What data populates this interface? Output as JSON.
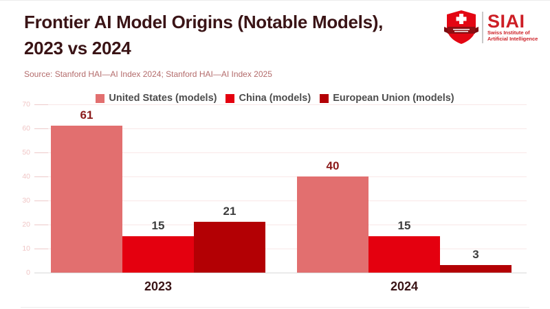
{
  "header": {
    "title_line1": "Frontier AI Model Origins (Notable Models),",
    "title_line2": "2023 vs 2024",
    "source": "Source: Stanford HAI—AI Index 2024; Stanford HAI—AI Index 2025",
    "logo": {
      "acronym": "SIAI",
      "subtitle_line1": "Swiss Institute of",
      "subtitle_line2": "Artificial Intelligence"
    }
  },
  "colors": {
    "title": "#3a1416",
    "source_text": "#b36b6b",
    "legend_text": "#4d4d4d",
    "gridline": "#f9e7e7",
    "axis_line": "#d9d9d9",
    "ytick_text": "#f0c6c6",
    "logo_red": "#cd1f26",
    "shield_red": "#e30613",
    "ribbon_dark_red": "#8e0e12"
  },
  "chart_data": {
    "type": "bar",
    "title": "Frontier AI Model Origins (Notable Models), 2023 vs 2024",
    "categories": [
      "2023",
      "2024"
    ],
    "series": [
      {
        "key": "us",
        "name": "United States (models)",
        "color": "#e26f6f",
        "label_color": "#8b1a1a",
        "values": [
          61,
          40
        ]
      },
      {
        "key": "china",
        "name": "China (models)",
        "color": "#e4000f",
        "label_color": "#3d3d3d",
        "values": [
          15,
          15
        ]
      },
      {
        "key": "eu",
        "name": "European Union (models)",
        "color": "#b30004",
        "label_color": "#3d3d3d",
        "values": [
          21,
          3
        ]
      }
    ],
    "ylabel": "",
    "xlabel": "",
    "ylim": [
      0,
      70
    ],
    "ytick_step": 10,
    "grid": true,
    "legend_position": "top"
  }
}
